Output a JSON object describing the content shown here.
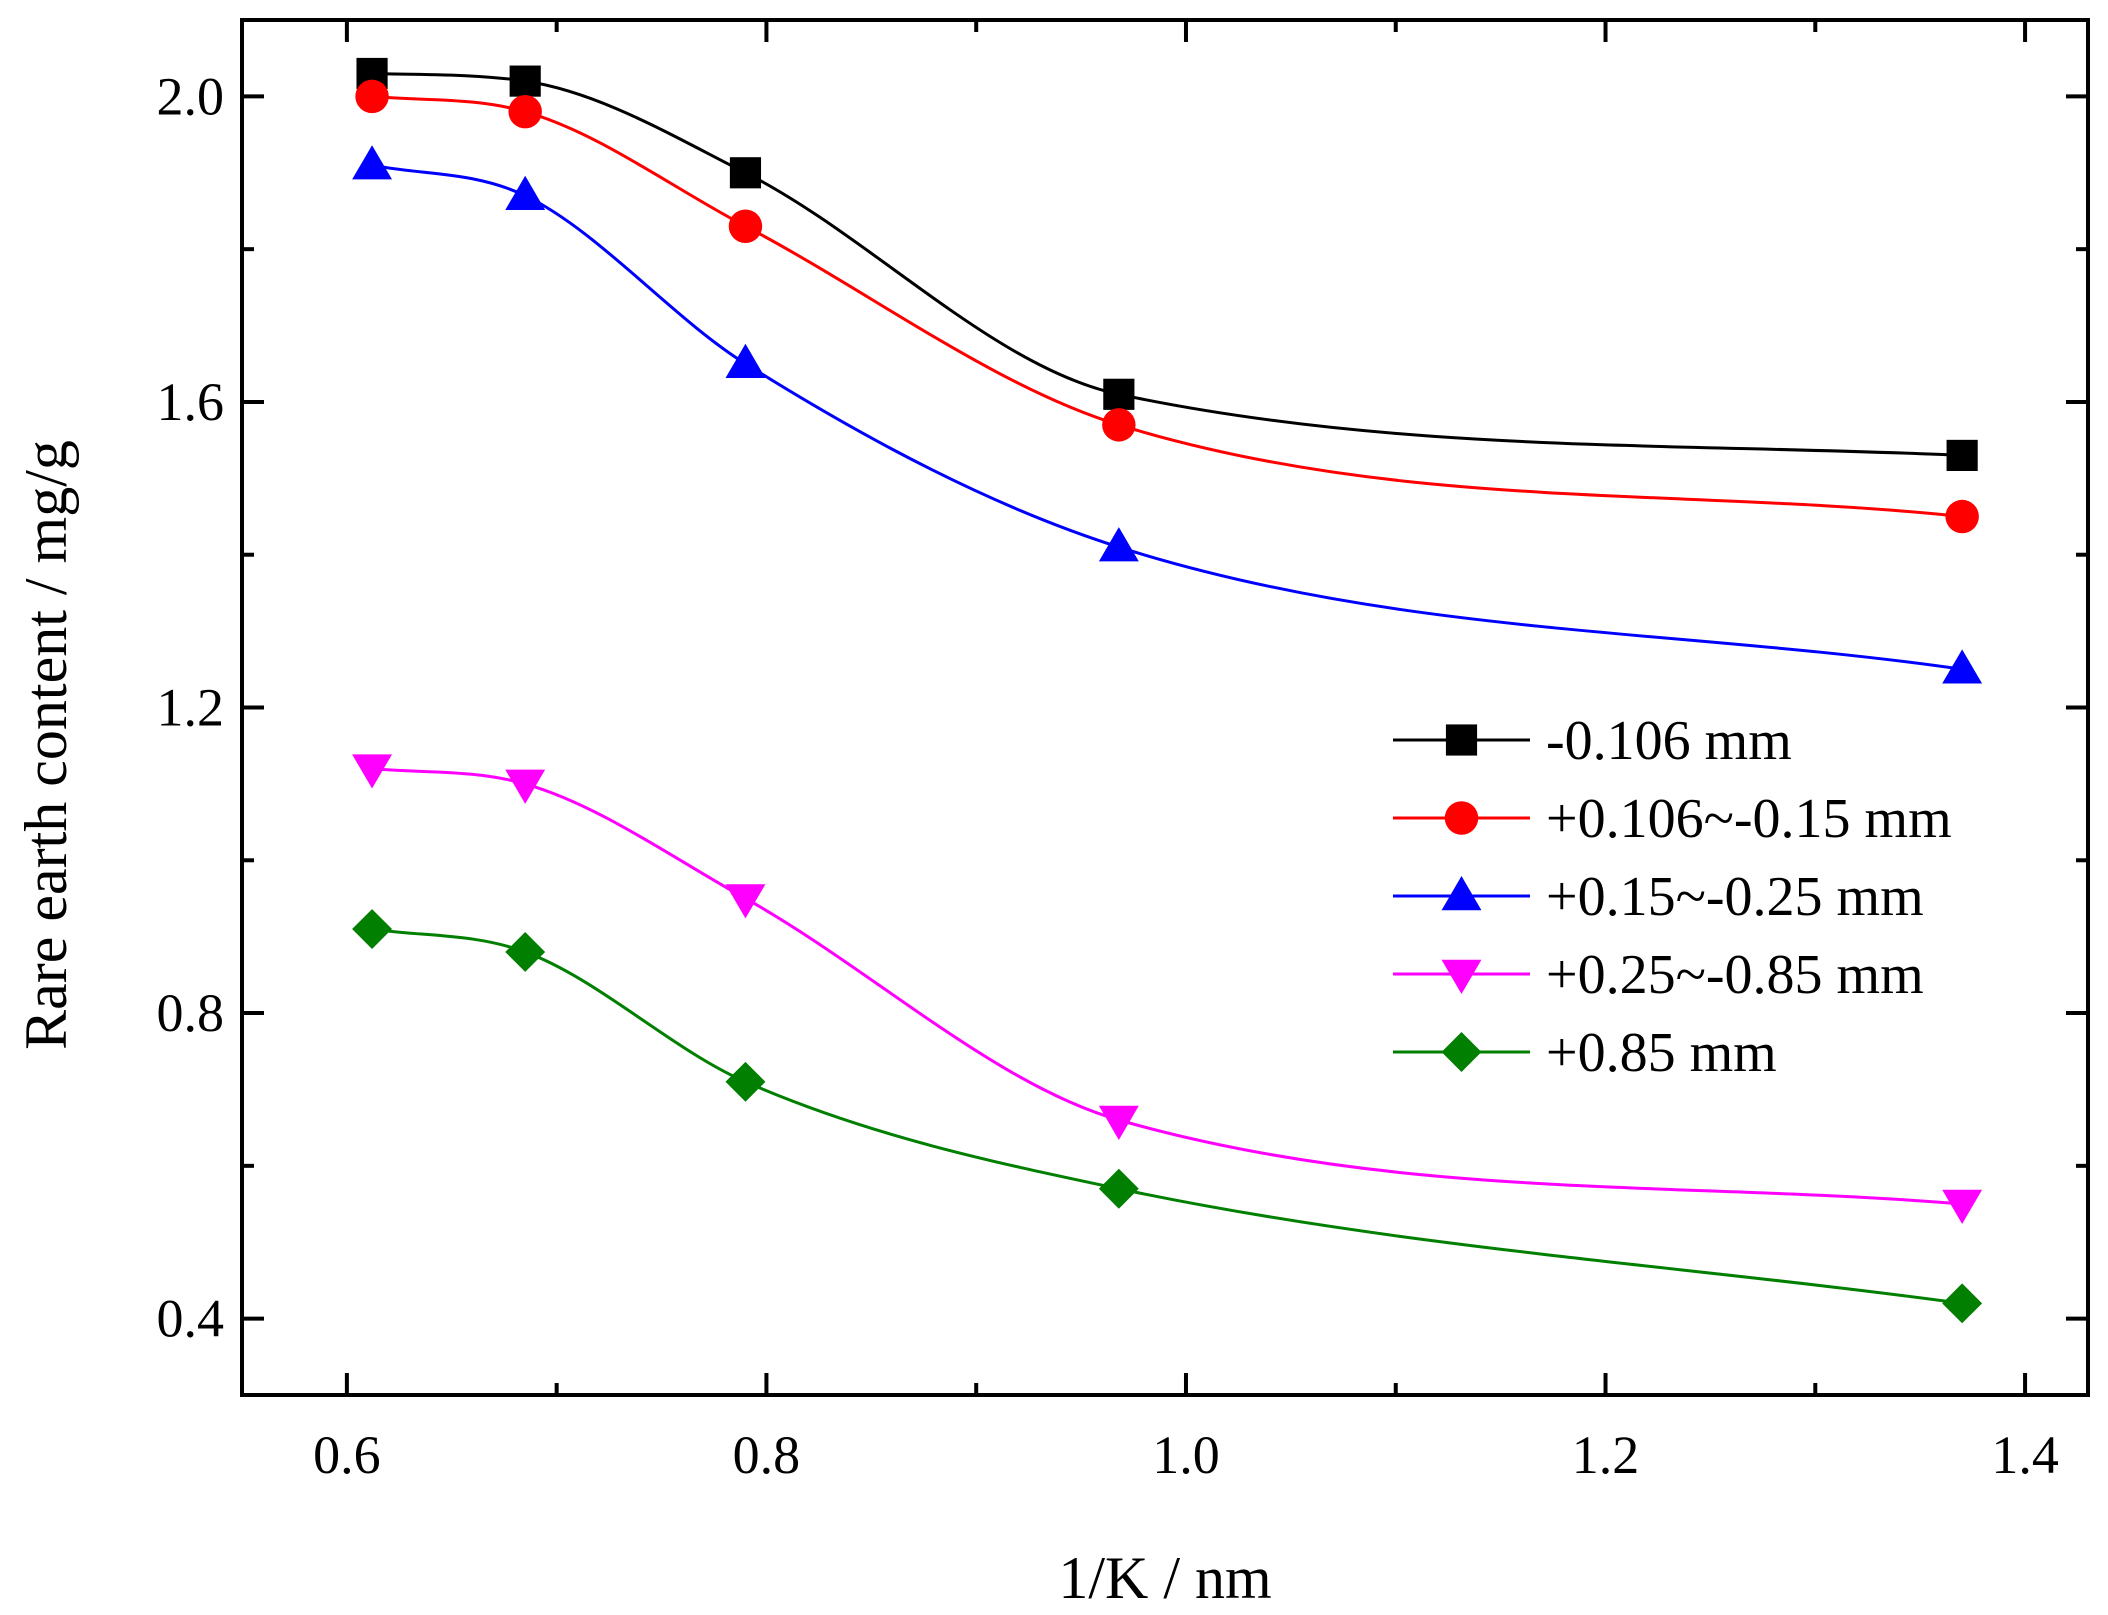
{
  "chart_data": {
    "type": "line",
    "title": "",
    "xlabel": "1/K / nm",
    "ylabel": "Rare earth content / mg/g",
    "xlim": [
      0.55,
      1.43
    ],
    "ylim": [
      0.3,
      2.1
    ],
    "xticks": [
      0.6,
      0.8,
      1.0,
      1.2,
      1.4
    ],
    "xtick_labels": [
      "0.6",
      "0.8",
      "1.0",
      "1.2",
      "1.4"
    ],
    "yticks": [
      0.4,
      0.8,
      1.2,
      1.6,
      2.0
    ],
    "ytick_labels": [
      "0.4",
      "0.8",
      "1.2",
      "1.6",
      "2.0"
    ],
    "grid": false,
    "legend_position": "right",
    "x": [
      0.612,
      0.685,
      0.79,
      0.968,
      1.37
    ],
    "series": [
      {
        "name": "-0.106 mm",
        "color": "#000000",
        "marker": "square",
        "values": [
          2.03,
          2.02,
          1.9,
          1.61,
          1.53
        ]
      },
      {
        "name": "+0.106~-0.15 mm",
        "color": "#ff0000",
        "marker": "circle",
        "values": [
          2.0,
          1.98,
          1.83,
          1.57,
          1.45
        ]
      },
      {
        "name": "+0.15~-0.25 mm",
        "color": "#0000ff",
        "marker": "triangle-up",
        "values": [
          1.91,
          1.87,
          1.65,
          1.41,
          1.25
        ]
      },
      {
        "name": "+0.25~-0.85 mm",
        "color": "#ff00ff",
        "marker": "triangle-down",
        "values": [
          1.12,
          1.1,
          0.95,
          0.66,
          0.55
        ]
      },
      {
        "name": "+0.85 mm",
        "color": "#007f00",
        "marker": "diamond",
        "values": [
          0.91,
          0.88,
          0.71,
          0.57,
          0.42
        ]
      }
    ]
  }
}
